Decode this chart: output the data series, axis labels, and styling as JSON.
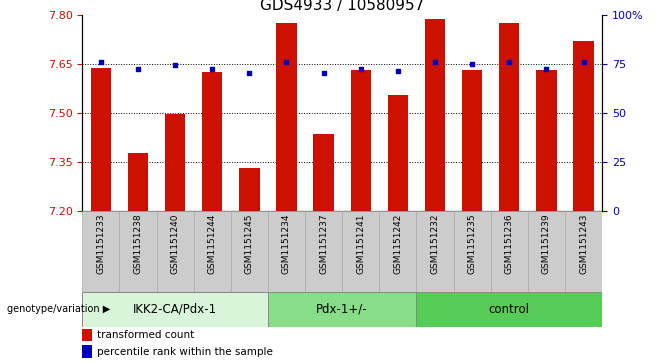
{
  "title": "GDS4933 / 10580957",
  "samples": [
    "GSM1151233",
    "GSM1151238",
    "GSM1151240",
    "GSM1151244",
    "GSM1151245",
    "GSM1151234",
    "GSM1151237",
    "GSM1151241",
    "GSM1151242",
    "GSM1151232",
    "GSM1151235",
    "GSM1151236",
    "GSM1151239",
    "GSM1151243"
  ],
  "bar_values": [
    7.636,
    7.375,
    7.495,
    7.625,
    7.33,
    7.775,
    7.435,
    7.63,
    7.555,
    7.785,
    7.63,
    7.775,
    7.63,
    7.72
  ],
  "dot_values": [
    76,
    72,
    74,
    72,
    70,
    76,
    70,
    72,
    71,
    76,
    75,
    76,
    72,
    76
  ],
  "ylim_left": [
    7.2,
    7.8
  ],
  "ylim_right": [
    0,
    100
  ],
  "yticks_left": [
    7.2,
    7.35,
    7.5,
    7.65,
    7.8
  ],
  "yticks_right": [
    0,
    25,
    50,
    75,
    100
  ],
  "ytick_labels_right": [
    "0",
    "25",
    "50",
    "75",
    "100%"
  ],
  "hlines": [
    7.35,
    7.5,
    7.65
  ],
  "groups": [
    {
      "label": "IKK2-CA/Pdx-1",
      "start": 0,
      "end": 5,
      "color": "#d9f5d9"
    },
    {
      "label": "Pdx-1+/-",
      "start": 5,
      "end": 9,
      "color": "#88dd88"
    },
    {
      "label": "control",
      "start": 9,
      "end": 14,
      "color": "#55cc55"
    }
  ],
  "bar_color": "#cc1100",
  "dot_color": "#0000bb",
  "bar_width": 0.55,
  "genotype_label": "genotype/variation",
  "legend_bar_label": "transformed count",
  "legend_dot_label": "percentile rank within the sample",
  "bg_sample": "#cccccc",
  "title_fontsize": 11,
  "tick_fontsize": 8,
  "group_fontsize": 8.5,
  "sample_fontsize": 6.5
}
